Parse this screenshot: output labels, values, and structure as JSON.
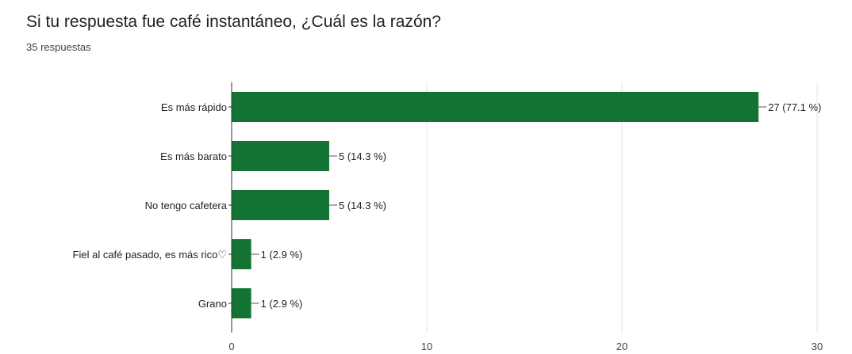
{
  "header": {
    "question": "Si tu respuesta fue café instantáneo,  ¿Cuál es la razón?",
    "responses": "35 respuestas"
  },
  "colors": {
    "bar": "#137333",
    "grid": "#e6e6e6",
    "axis": "#333333"
  },
  "chart_data": {
    "type": "bar",
    "orientation": "horizontal",
    "categories": [
      "Es más rápido",
      "Es más barato",
      "No tengo cafetera",
      "Fiel al café pasado, es más rico♡",
      "Grano"
    ],
    "values": [
      27,
      5,
      5,
      1,
      1
    ],
    "data_labels": [
      "27 (77.1 %)",
      "5 (14.3 %)",
      "5 (14.3 %)",
      "1 (2.9 %)",
      "1 (2.9 %)"
    ],
    "xlim": [
      0,
      30
    ],
    "xticks": [
      0,
      10,
      20,
      30
    ],
    "grid": true,
    "title": "",
    "xlabel": "",
    "ylabel": ""
  }
}
